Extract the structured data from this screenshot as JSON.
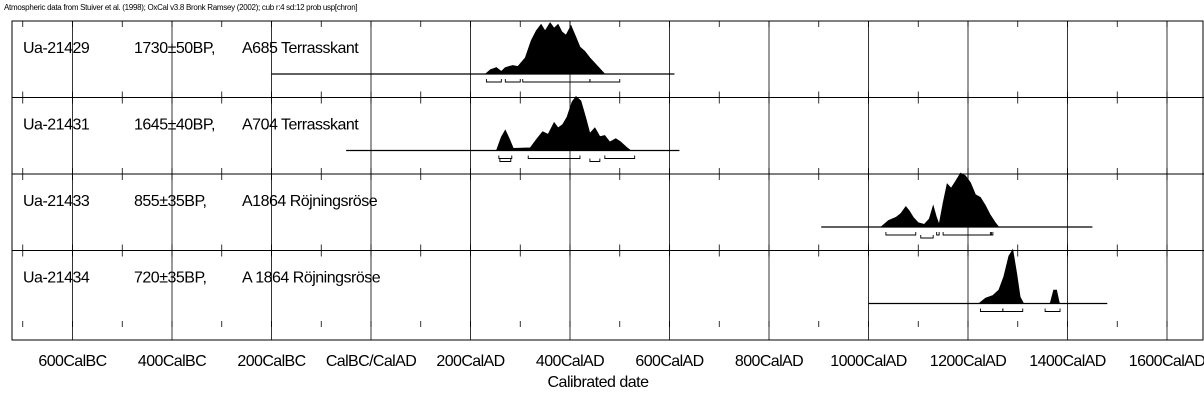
{
  "header_note": "Atmospheric data from Stuiver et al. (1998); OxCal v3.8 Bronk Ramsey (2002); cub r:4 sd:12 prob usp[chron]",
  "chart_data": {
    "type": "area",
    "title": "",
    "xlabel": "Calibrated date",
    "ylabel": "",
    "xlim": [
      -700,
      1700
    ],
    "tick_values": [
      -600,
      -400,
      -200,
      0,
      200,
      400,
      600,
      800,
      1000,
      1200,
      1400,
      1600
    ],
    "tick_labels": [
      "600CalBC",
      "400CalBC",
      "200CalBC",
      "CalBC/CalAD",
      "200CalAD",
      "400CalAD",
      "600CalAD",
      "800CalAD",
      "1000CalAD",
      "1200CalAD",
      "1400CalAD",
      "1600CalAD"
    ],
    "grid": true,
    "series": [
      {
        "lab_id": "Ua-21429",
        "age": "1730±50BP,",
        "context": "A685 Terrasskant",
        "line_range": [
          -200,
          610
        ],
        "distribution": [
          [
            230,
            0
          ],
          [
            240,
            0.08
          ],
          [
            252,
            0.12
          ],
          [
            262,
            0.05
          ],
          [
            270,
            0.12
          ],
          [
            285,
            0.16
          ],
          [
            295,
            0.14
          ],
          [
            310,
            0.3
          ],
          [
            322,
            0.62
          ],
          [
            332,
            0.8
          ],
          [
            342,
            0.92
          ],
          [
            350,
            0.8
          ],
          [
            360,
            0.95
          ],
          [
            368,
            0.85
          ],
          [
            376,
            0.92
          ],
          [
            384,
            0.78
          ],
          [
            392,
            0.72
          ],
          [
            402,
            0.9
          ],
          [
            412,
            0.68
          ],
          [
            420,
            0.5
          ],
          [
            430,
            0.42
          ],
          [
            440,
            0.3
          ],
          [
            455,
            0.15
          ],
          [
            470,
            0
          ],
          [
            470,
            0
          ]
        ],
        "hpd_brackets": [
          [
            232,
            262
          ],
          [
            270,
            300
          ],
          [
            305,
            440
          ],
          [
            440,
            500
          ]
        ]
      },
      {
        "lab_id": "Ua-21431",
        "age": "1645±40BP,",
        "context": "A704 Terrasskant",
        "line_range": [
          -50,
          620
        ],
        "distribution": [
          [
            252,
            0
          ],
          [
            262,
            0.25
          ],
          [
            270,
            0.38
          ],
          [
            278,
            0.22
          ],
          [
            286,
            0.04
          ],
          [
            320,
            0.05
          ],
          [
            332,
            0.2
          ],
          [
            345,
            0.35
          ],
          [
            356,
            0.3
          ],
          [
            368,
            0.52
          ],
          [
            376,
            0.42
          ],
          [
            385,
            0.48
          ],
          [
            394,
            0.62
          ],
          [
            404,
            0.9
          ],
          [
            412,
            1.0
          ],
          [
            422,
            0.92
          ],
          [
            432,
            0.6
          ],
          [
            440,
            0.32
          ],
          [
            450,
            0.42
          ],
          [
            460,
            0.26
          ],
          [
            470,
            0.28
          ],
          [
            480,
            0.16
          ],
          [
            492,
            0.22
          ],
          [
            502,
            0.16
          ],
          [
            515,
            0.05
          ],
          [
            522,
            0
          ]
        ],
        "hpd_brackets": [
          [
            257,
            283
          ],
          [
            259,
            281
          ],
          [
            316,
            420
          ],
          [
            440,
            460
          ],
          [
            470,
            530
          ]
        ]
      },
      {
        "lab_id": "Ua-21433",
        "age": "855±35BP,",
        "context": "A1864 Röjningsröse",
        "line_range": [
          905,
          1450
        ],
        "distribution": [
          [
            1025,
            0
          ],
          [
            1040,
            0.12
          ],
          [
            1055,
            0.18
          ],
          [
            1065,
            0.25
          ],
          [
            1075,
            0.38
          ],
          [
            1082,
            0.3
          ],
          [
            1090,
            0.18
          ],
          [
            1100,
            0.08
          ],
          [
            1112,
            0.05
          ],
          [
            1122,
            0.15
          ],
          [
            1130,
            0.4
          ],
          [
            1136,
            0.2
          ],
          [
            1142,
            0.05
          ],
          [
            1150,
            0.45
          ],
          [
            1158,
            0.8
          ],
          [
            1166,
            0.72
          ],
          [
            1175,
            0.85
          ],
          [
            1185,
            1.0
          ],
          [
            1195,
            0.95
          ],
          [
            1205,
            0.82
          ],
          [
            1215,
            0.6
          ],
          [
            1225,
            0.55
          ],
          [
            1235,
            0.4
          ],
          [
            1245,
            0.22
          ],
          [
            1255,
            0.08
          ],
          [
            1262,
            0
          ]
        ],
        "hpd_brackets": [
          [
            1035,
            1095
          ],
          [
            1105,
            1130
          ],
          [
            1137,
            1142
          ],
          [
            1150,
            1247
          ],
          [
            1245,
            1250
          ]
        ]
      },
      {
        "lab_id": "Ua-21434",
        "age": "720±35BP,",
        "context": "A 1864 Röjningsröse",
        "line_range": [
          1000,
          1480
        ],
        "distribution": [
          [
            1222,
            0
          ],
          [
            1235,
            0.1
          ],
          [
            1250,
            0.15
          ],
          [
            1262,
            0.25
          ],
          [
            1272,
            0.5
          ],
          [
            1282,
            0.88
          ],
          [
            1290,
            1.0
          ],
          [
            1298,
            0.55
          ],
          [
            1305,
            0.12
          ],
          [
            1312,
            0
          ],
          [
            1365,
            0
          ],
          [
            1372,
            0.25
          ],
          [
            1378,
            0.25
          ],
          [
            1384,
            0
          ]
        ],
        "hpd_brackets": [
          [
            1225,
            1270
          ],
          [
            1270,
            1310
          ],
          [
            1355,
            1385
          ]
        ]
      }
    ]
  }
}
